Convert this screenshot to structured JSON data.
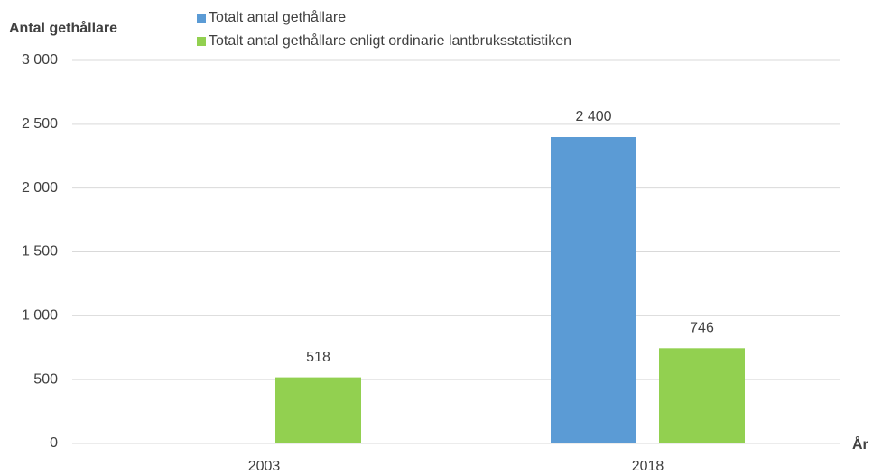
{
  "chart_data": {
    "type": "bar",
    "y_label": "Antal gethållare",
    "x_label": "År",
    "categories": [
      "2003",
      "2018"
    ],
    "series": [
      {
        "name": "Totalt antal gethållare",
        "color": "#5b9bd5",
        "values": [
          null,
          2400
        ],
        "value_labels": [
          null,
          "2 400"
        ]
      },
      {
        "name": "Totalt antal gethållare enligt ordinarie lantbruksstatistiken",
        "color": "#92d050",
        "values": [
          518,
          746
        ]
      }
    ],
    "ylim": [
      0,
      3000
    ],
    "yticks": [
      0,
      500,
      {
        "value": 1000,
        "label": "1 000"
      },
      {
        "value": 1500,
        "label": "1 500"
      },
      {
        "value": 2000,
        "label": "2 000"
      },
      {
        "value": 2500,
        "label": "2 500"
      },
      {
        "value": 3000,
        "label": "3 000"
      }
    ],
    "grid": true
  }
}
